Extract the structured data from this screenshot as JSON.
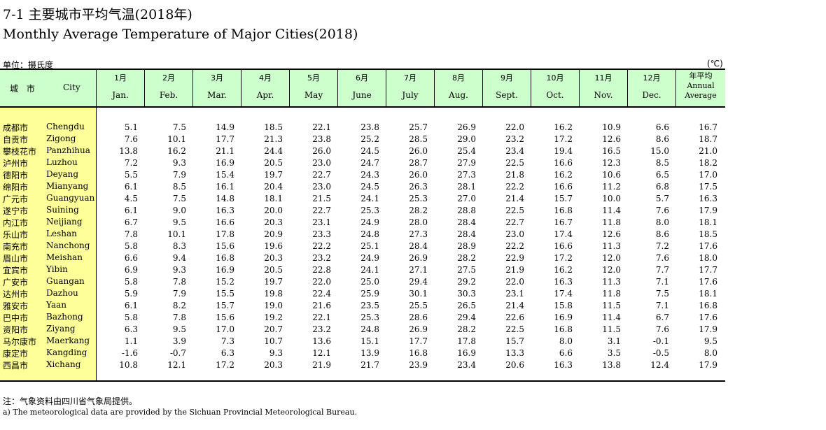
{
  "title_cn": "7-1  主要城市平均气温(2018年)",
  "title_en": "Monthly Average Temperature of Major Cities(2018)",
  "unit_cn": "单位：摄氏度",
  "unit_symbol": "(℃)",
  "header": {
    "city_cn": "城 市",
    "city_en": "City",
    "months": [
      {
        "cn": "1月",
        "en": "Jan."
      },
      {
        "cn": "2月",
        "en": "Feb."
      },
      {
        "cn": "3月",
        "en": "Mar."
      },
      {
        "cn": "4月",
        "en": "Apr."
      },
      {
        "cn": "5月",
        "en": "May"
      },
      {
        "cn": "6月",
        "en": "June"
      },
      {
        "cn": "7月",
        "en": "July"
      },
      {
        "cn": "8月",
        "en": "Aug."
      },
      {
        "cn": "9月",
        "en": "Sept."
      },
      {
        "cn": "10月",
        "en": "Oct."
      },
      {
        "cn": "11月",
        "en": "Nov."
      },
      {
        "cn": "12月",
        "en": "Dec."
      }
    ],
    "annual_cn": "年平均",
    "annual_en_1": "Annual",
    "annual_en_2": "Average"
  },
  "rows": [
    {
      "cn": "成都市",
      "en": "Chengdu",
      "values": [
        "5.1",
        "7.5",
        "14.9",
        "18.5",
        "22.1",
        "23.8",
        "25.7",
        "26.9",
        "22.0",
        "16.2",
        "10.9",
        "6.6",
        "16.7"
      ]
    },
    {
      "cn": "自贡市",
      "en": "Zigong",
      "values": [
        "7.6",
        "10.1",
        "17.7",
        "21.3",
        "23.8",
        "25.2",
        "28.5",
        "29.0",
        "23.2",
        "17.2",
        "12.6",
        "8.6",
        "18.7"
      ]
    },
    {
      "cn": "攀枝花市",
      "en": "Panzhihua",
      "values": [
        "13.8",
        "16.2",
        "21.1",
        "24.4",
        "26.0",
        "24.5",
        "26.0",
        "25.4",
        "23.4",
        "19.4",
        "16.5",
        "15.0",
        "21.0"
      ]
    },
    {
      "cn": "泸州市",
      "en": "Luzhou",
      "values": [
        "7.2",
        "9.3",
        "16.9",
        "20.5",
        "23.0",
        "24.7",
        "28.7",
        "27.9",
        "22.5",
        "16.6",
        "12.3",
        "8.5",
        "18.2"
      ]
    },
    {
      "cn": "德阳市",
      "en": "Deyang",
      "values": [
        "5.5",
        "7.9",
        "15.4",
        "19.7",
        "22.7",
        "24.3",
        "26.0",
        "27.3",
        "21.8",
        "16.2",
        "10.6",
        "6.5",
        "17.0"
      ]
    },
    {
      "cn": "绵阳市",
      "en": "Mianyang",
      "values": [
        "6.1",
        "8.5",
        "16.1",
        "20.4",
        "23.0",
        "24.5",
        "26.3",
        "28.1",
        "22.2",
        "16.6",
        "11.2",
        "6.8",
        "17.5"
      ]
    },
    {
      "cn": "广元市",
      "en": "Guangyuan",
      "values": [
        "4.5",
        "7.5",
        "14.8",
        "18.1",
        "21.5",
        "24.1",
        "25.3",
        "27.0",
        "21.4",
        "15.7",
        "10.0",
        "5.7",
        "16.3"
      ]
    },
    {
      "cn": "遂宁市",
      "en": "Suining",
      "values": [
        "6.1",
        "9.0",
        "16.3",
        "20.0",
        "22.7",
        "25.3",
        "28.2",
        "28.8",
        "22.5",
        "16.8",
        "11.4",
        "7.6",
        "17.9"
      ]
    },
    {
      "cn": "内江市",
      "en": "Neijiang",
      "values": [
        "6.7",
        "9.5",
        "16.6",
        "20.3",
        "23.1",
        "24.9",
        "28.0",
        "28.4",
        "22.7",
        "16.7",
        "11.8",
        "8.0",
        "18.1"
      ]
    },
    {
      "cn": "乐山市",
      "en": "Leshan",
      "values": [
        "7.8",
        "10.1",
        "17.8",
        "20.9",
        "23.3",
        "24.8",
        "27.3",
        "28.4",
        "23.0",
        "17.4",
        "12.6",
        "8.6",
        "18.5"
      ]
    },
    {
      "cn": "南充市",
      "en": "Nanchong",
      "values": [
        "5.8",
        "8.3",
        "15.6",
        "19.6",
        "22.2",
        "25.1",
        "28.4",
        "28.9",
        "22.2",
        "16.6",
        "11.3",
        "7.2",
        "17.6"
      ]
    },
    {
      "cn": "眉山市",
      "en": "Meishan",
      "values": [
        "6.6",
        "9.4",
        "16.8",
        "20.3",
        "23.2",
        "24.9",
        "26.9",
        "28.2",
        "22.9",
        "17.2",
        "12.0",
        "7.6",
        "18.0"
      ]
    },
    {
      "cn": "宜宾市",
      "en": "Yibin",
      "values": [
        "6.9",
        "9.3",
        "16.9",
        "20.5",
        "22.8",
        "24.1",
        "27.1",
        "27.5",
        "21.9",
        "16.2",
        "12.0",
        "7.7",
        "17.7"
      ]
    },
    {
      "cn": "广安市",
      "en": "Guangan",
      "values": [
        "5.8",
        "7.8",
        "15.2",
        "19.7",
        "22.0",
        "25.0",
        "29.4",
        "29.2",
        "22.0",
        "16.3",
        "11.3",
        "7.1",
        "17.6"
      ]
    },
    {
      "cn": "达州市",
      "en": "Dazhou",
      "values": [
        "5.9",
        "7.9",
        "15.5",
        "19.8",
        "22.4",
        "25.9",
        "30.1",
        "30.3",
        "23.1",
        "17.4",
        "11.8",
        "7.5",
        "18.1"
      ]
    },
    {
      "cn": "雅安市",
      "en": "Yaan",
      "values": [
        "6.1",
        "8.2",
        "15.7",
        "19.0",
        "21.6",
        "23.5",
        "25.5",
        "26.5",
        "21.4",
        "15.8",
        "11.5",
        "7.1",
        "16.8"
      ]
    },
    {
      "cn": "巴中市",
      "en": "Bazhong",
      "values": [
        "5.8",
        "7.8",
        "15.6",
        "19.2",
        "22.1",
        "25.3",
        "28.6",
        "29.4",
        "22.6",
        "16.9",
        "11.4",
        "6.7",
        "17.6"
      ]
    },
    {
      "cn": "资阳市",
      "en": "Ziyang",
      "values": [
        "6.3",
        "9.5",
        "17.0",
        "20.7",
        "23.2",
        "24.8",
        "26.9",
        "28.2",
        "22.5",
        "16.8",
        "11.5",
        "7.6",
        "17.9"
      ]
    },
    {
      "cn": "马尔康市",
      "en": "Maerkang",
      "values": [
        "1.1",
        "3.9",
        "7.3",
        "10.7",
        "13.6",
        "15.1",
        "17.7",
        "17.8",
        "15.7",
        "8.0",
        "3.1",
        "-0.1",
        "9.5"
      ]
    },
    {
      "cn": "康定市",
      "en": "Kangding",
      "values": [
        "-1.6",
        "-0.7",
        "6.3",
        "9.3",
        "12.1",
        "13.9",
        "16.8",
        "16.9",
        "13.3",
        "6.6",
        "3.5",
        "-0.5",
        "8.0"
      ]
    },
    {
      "cn": "西昌市",
      "en": "Xichang",
      "values": [
        "10.8",
        "12.1",
        "17.2",
        "20.3",
        "21.9",
        "21.7",
        "23.9",
        "23.4",
        "20.6",
        "16.3",
        "13.8",
        "12.4",
        "17.9"
      ]
    }
  ],
  "note_cn": "注：气象资料由四川省气象局提供。",
  "note_en": "a) The meteorological data are provided by the Sichuan Provincial Meteorological Bureau."
}
